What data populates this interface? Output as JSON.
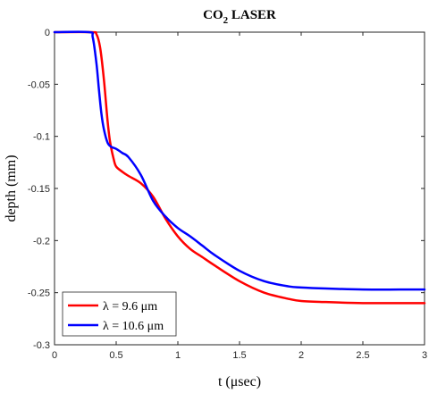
{
  "chart_data": {
    "type": "line",
    "title": "CO2 LASER",
    "title_parts": {
      "main": "CO",
      "sub": "2",
      "rest": " LASER"
    },
    "xlabel": "t (μsec)",
    "ylabel": "depth (mm)",
    "xlim": [
      0,
      3
    ],
    "ylim": [
      -0.3,
      0
    ],
    "xticks": [
      0,
      0.5,
      1,
      1.5,
      2,
      2.5,
      3
    ],
    "xtick_labels": [
      "0",
      "0.5",
      "1",
      "1.5",
      "2",
      "2.5",
      "3"
    ],
    "yticks": [
      0,
      -0.05,
      -0.1,
      -0.15,
      -0.2,
      -0.25,
      -0.3
    ],
    "ytick_labels": [
      "0",
      "-0.05",
      "-0.1",
      "-0.15",
      "-0.2",
      "-0.25",
      "-0.3"
    ],
    "grid": false,
    "legend_position": "bottom-left",
    "series": [
      {
        "name": "λ = 9.6 μm",
        "color": "#ff0000",
        "x": [
          0,
          0.3,
          0.34,
          0.37,
          0.4,
          0.43,
          0.45,
          0.48,
          0.5,
          0.55,
          0.6,
          0.7,
          0.8,
          0.9,
          1.0,
          1.1,
          1.2,
          1.3,
          1.5,
          1.7,
          1.9,
          2.0,
          2.2,
          2.5,
          2.8,
          3.0
        ],
        "y": [
          0,
          0,
          -0.002,
          -0.015,
          -0.045,
          -0.085,
          -0.105,
          -0.122,
          -0.129,
          -0.134,
          -0.138,
          -0.145,
          -0.158,
          -0.179,
          -0.196,
          -0.208,
          -0.216,
          -0.224,
          -0.239,
          -0.25,
          -0.256,
          -0.258,
          -0.259,
          -0.26,
          -0.26,
          -0.26
        ]
      },
      {
        "name": "λ = 10.6 μm",
        "color": "#0000ff",
        "x": [
          0,
          0.28,
          0.31,
          0.34,
          0.36,
          0.38,
          0.4,
          0.43,
          0.46,
          0.5,
          0.55,
          0.6,
          0.7,
          0.8,
          0.9,
          1.0,
          1.1,
          1.2,
          1.3,
          1.5,
          1.7,
          1.9,
          2.0,
          2.2,
          2.5,
          2.8,
          3.0
        ],
        "y": [
          0,
          0,
          -0.005,
          -0.03,
          -0.055,
          -0.078,
          -0.093,
          -0.106,
          -0.11,
          -0.112,
          -0.116,
          -0.12,
          -0.137,
          -0.162,
          -0.177,
          -0.188,
          -0.196,
          -0.205,
          -0.214,
          -0.229,
          -0.239,
          -0.244,
          -0.245,
          -0.246,
          -0.247,
          -0.247,
          -0.247
        ]
      }
    ]
  }
}
